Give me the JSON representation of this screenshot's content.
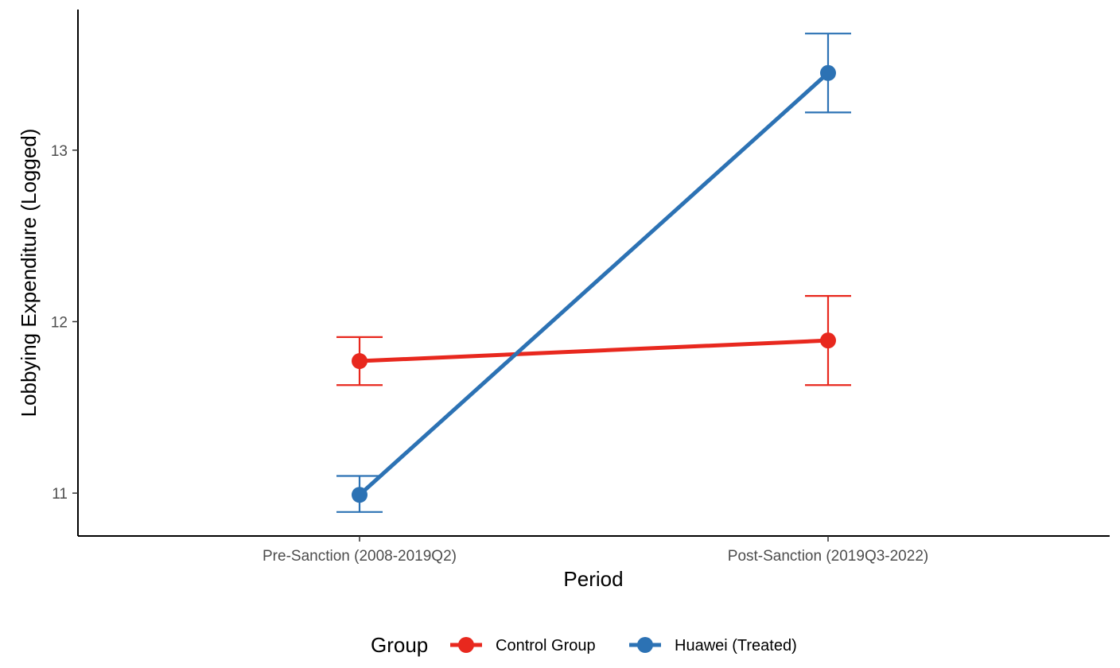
{
  "chart_data": {
    "type": "line",
    "xlabel": "Period",
    "ylabel": "Lobbying Expenditure (Logged)",
    "categories": [
      "Pre-Sanction (2008-2019Q2)",
      "Post-Sanction (2019Q3-2022)"
    ],
    "ylim": [
      10.75,
      13.82
    ],
    "yticks": [
      11,
      12,
      13
    ],
    "grid": false,
    "legend": {
      "title": "Group",
      "position": "bottom"
    },
    "series": [
      {
        "name": "Control Group",
        "color": "#e8281e",
        "values": [
          11.77,
          11.89
        ],
        "error_low": [
          11.63,
          11.63
        ],
        "error_high": [
          11.91,
          12.15
        ]
      },
      {
        "name": "Huawei (Treated)",
        "color": "#2c72b4",
        "values": [
          10.99,
          13.45
        ],
        "error_low": [
          10.89,
          13.22
        ],
        "error_high": [
          11.1,
          13.68
        ]
      }
    ]
  }
}
